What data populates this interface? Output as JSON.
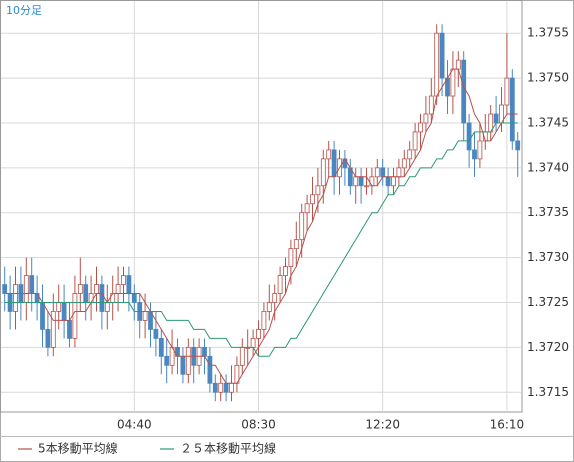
{
  "chart_data": {
    "type": "candlestick",
    "title": "10分足",
    "categories": [
      null,
      null,
      null,
      null,
      null,
      null,
      null,
      null,
      null,
      null,
      null,
      null,
      null,
      null,
      null,
      null,
      null,
      null,
      null,
      null,
      null,
      null,
      null,
      null,
      "04:40",
      null,
      null,
      null,
      null,
      null,
      null,
      null,
      null,
      null,
      null,
      null,
      null,
      null,
      null,
      null,
      null,
      null,
      null,
      null,
      null,
      null,
      null,
      "08:30",
      null,
      null,
      null,
      null,
      null,
      null,
      null,
      null,
      null,
      null,
      null,
      null,
      null,
      null,
      null,
      null,
      null,
      null,
      null,
      null,
      null,
      null,
      "12:20",
      null,
      null,
      null,
      null,
      null,
      null,
      null,
      null,
      null,
      null,
      null,
      null,
      null,
      null,
      null,
      null,
      null,
      null,
      null,
      null,
      null,
      null,
      "16:10",
      null,
      null
    ],
    "open": [
      1.3727,
      1.3726,
      1.3724,
      1.3727,
      1.3725,
      1.3728,
      1.3726,
      1.3725,
      1.3722,
      1.372,
      1.3724,
      1.3725,
      1.3723,
      1.3721,
      1.3726,
      1.3727,
      1.3725,
      1.3726,
      1.3727,
      1.3724,
      1.3725,
      1.3726,
      1.3727,
      1.3728,
      1.3726,
      1.3725,
      1.3723,
      1.3724,
      1.3722,
      1.3721,
      1.3719,
      1.3718,
      1.372,
      1.3719,
      1.3717,
      1.372,
      1.3718,
      1.372,
      1.3719,
      1.3716,
      1.3715,
      1.3716,
      1.3715,
      1.3716,
      1.3718,
      1.372,
      1.372,
      1.3721,
      1.3722,
      1.3724,
      1.3725,
      1.3726,
      1.3728,
      1.3729,
      1.3731,
      1.3732,
      1.3735,
      1.3736,
      1.3737,
      1.3738,
      1.3741,
      1.3742,
      1.3739,
      1.3741,
      1.374,
      1.3738,
      1.3739,
      1.3738,
      1.3738,
      1.3739,
      1.374,
      1.3739,
      1.3738,
      1.3739,
      1.374,
      1.3741,
      1.3742,
      1.3744,
      1.3745,
      1.3746,
      1.3748,
      1.3755,
      1.375,
      1.3748,
      1.3751,
      1.3752,
      1.3745,
      1.3742,
      1.3741,
      1.3743,
      1.3744,
      1.3746,
      1.3745,
      1.3747,
      1.375,
      1.3743
    ],
    "high": [
      1.3729,
      1.3728,
      1.3729,
      1.3729,
      1.373,
      1.373,
      1.3728,
      1.3727,
      1.3724,
      1.3726,
      1.3727,
      1.3727,
      1.3725,
      1.3728,
      1.373,
      1.3728,
      1.3728,
      1.3729,
      1.3728,
      1.3727,
      1.3728,
      1.3729,
      1.3729,
      1.3729,
      1.3727,
      1.3726,
      1.3726,
      1.3725,
      1.3724,
      1.3722,
      1.3721,
      1.3722,
      1.3721,
      1.372,
      1.3721,
      1.3721,
      1.3721,
      1.3721,
      1.372,
      1.3717,
      1.3717,
      1.3717,
      1.3718,
      1.3719,
      1.3721,
      1.3722,
      1.3722,
      1.3723,
      1.3725,
      1.3727,
      1.3727,
      1.3729,
      1.373,
      1.3732,
      1.3734,
      1.3736,
      1.3737,
      1.3739,
      1.374,
      1.3742,
      1.3743,
      1.3743,
      1.3742,
      1.3742,
      1.3741,
      1.374,
      1.374,
      1.374,
      1.374,
      1.3741,
      1.3741,
      1.374,
      1.374,
      1.3741,
      1.3742,
      1.3743,
      1.3745,
      1.3746,
      1.3748,
      1.375,
      1.3756,
      1.3756,
      1.3752,
      1.3753,
      1.3753,
      1.3753,
      1.3746,
      1.3744,
      1.3745,
      1.3746,
      1.3747,
      1.3748,
      1.3749,
      1.3755,
      1.3751,
      1.3744
    ],
    "low": [
      1.3724,
      1.3722,
      1.3722,
      1.3723,
      1.3723,
      1.3724,
      1.3723,
      1.372,
      1.3719,
      1.3719,
      1.3722,
      1.3721,
      1.372,
      1.372,
      1.3724,
      1.3723,
      1.3723,
      1.3724,
      1.3722,
      1.3722,
      1.3723,
      1.3724,
      1.3725,
      1.3724,
      1.3723,
      1.3721,
      1.3721,
      1.372,
      1.3719,
      1.3717,
      1.3716,
      1.3717,
      1.3717,
      1.3716,
      1.3716,
      1.3716,
      1.3717,
      1.3717,
      1.3715,
      1.3714,
      1.3714,
      1.3714,
      1.3714,
      1.3715,
      1.3717,
      1.3718,
      1.3719,
      1.3719,
      1.3721,
      1.3723,
      1.3723,
      1.3725,
      1.3726,
      1.3727,
      1.3729,
      1.373,
      1.3733,
      1.3734,
      1.3735,
      1.3736,
      1.3739,
      1.3737,
      1.3737,
      1.3738,
      1.3737,
      1.3736,
      1.3736,
      1.3737,
      1.3737,
      1.3738,
      1.3738,
      1.3737,
      1.3737,
      1.3738,
      1.3739,
      1.374,
      1.3741,
      1.3742,
      1.3744,
      1.3745,
      1.3747,
      1.3748,
      1.3746,
      1.3746,
      1.3749,
      1.3743,
      1.374,
      1.3739,
      1.374,
      1.3742,
      1.3743,
      1.3744,
      1.3744,
      1.3746,
      1.3742,
      1.3739
    ],
    "close": [
      1.3726,
      1.3724,
      1.3727,
      1.3725,
      1.3728,
      1.3726,
      1.3725,
      1.3722,
      1.372,
      1.3724,
      1.3725,
      1.3723,
      1.3721,
      1.3726,
      1.3727,
      1.3725,
      1.3726,
      1.3727,
      1.3724,
      1.3725,
      1.3726,
      1.3727,
      1.3728,
      1.3726,
      1.3725,
      1.3723,
      1.3724,
      1.3722,
      1.3721,
      1.3719,
      1.3718,
      1.372,
      1.3719,
      1.3717,
      1.372,
      1.3718,
      1.372,
      1.3719,
      1.3716,
      1.3715,
      1.3716,
      1.3715,
      1.3716,
      1.3718,
      1.372,
      1.372,
      1.3721,
      1.3722,
      1.3724,
      1.3725,
      1.3726,
      1.3728,
      1.3729,
      1.3731,
      1.3732,
      1.3735,
      1.3736,
      1.3737,
      1.3738,
      1.3741,
      1.3742,
      1.3739,
      1.3741,
      1.374,
      1.3738,
      1.3739,
      1.3738,
      1.3738,
      1.3739,
      1.374,
      1.3739,
      1.3738,
      1.3739,
      1.374,
      1.3741,
      1.3742,
      1.3744,
      1.3745,
      1.3746,
      1.3748,
      1.3755,
      1.375,
      1.3748,
      1.3751,
      1.3752,
      1.3745,
      1.3742,
      1.3741,
      1.3743,
      1.3744,
      1.3746,
      1.3745,
      1.3747,
      1.375,
      1.3743,
      1.3742
    ],
    "up_color": "#b5524a",
    "down_color": "#4a86c0",
    "series": [
      {
        "name": "5本移動平均線",
        "color": "#b5524a",
        "values": [
          1.3726,
          1.3726,
          1.3726,
          1.3726,
          1.3726,
          1.3726,
          1.3726,
          1.3725,
          1.3724,
          1.3723,
          1.3723,
          1.3723,
          1.3723,
          1.3724,
          1.3724,
          1.3724,
          1.3725,
          1.3726,
          1.3726,
          1.3725,
          1.3726,
          1.3726,
          1.3726,
          1.3726,
          1.3726,
          1.3726,
          1.3725,
          1.3724,
          1.3723,
          1.3722,
          1.3721,
          1.372,
          1.3719,
          1.3719,
          1.3719,
          1.3719,
          1.3719,
          1.3719,
          1.3718,
          1.3718,
          1.3717,
          1.3716,
          1.3716,
          1.3716,
          1.3717,
          1.3718,
          1.3719,
          1.372,
          1.3721,
          1.3722,
          1.3724,
          1.3725,
          1.3726,
          1.3728,
          1.3729,
          1.3731,
          1.3733,
          1.3734,
          1.3736,
          1.3737,
          1.3739,
          1.3739,
          1.374,
          1.3741,
          1.374,
          1.3739,
          1.3739,
          1.3739,
          1.3738,
          1.3738,
          1.3739,
          1.3739,
          1.3739,
          1.3739,
          1.3739,
          1.374,
          1.3741,
          1.3742,
          1.3744,
          1.3745,
          1.3748,
          1.3749,
          1.375,
          1.3751,
          1.3751,
          1.3749,
          1.3748,
          1.3746,
          1.3745,
          1.3743,
          1.3743,
          1.3744,
          1.3745,
          1.3746,
          1.3746,
          1.3746
        ]
      },
      {
        "name": "２５本移動平均線",
        "color": "#2a9a72",
        "values": [
          1.3725,
          1.3725,
          1.3725,
          1.3725,
          1.3725,
          1.3725,
          1.3725,
          1.3725,
          1.3725,
          1.3725,
          1.3725,
          1.3725,
          1.3725,
          1.3725,
          1.3725,
          1.3725,
          1.3725,
          1.3725,
          1.3725,
          1.3725,
          1.3725,
          1.3725,
          1.3725,
          1.3725,
          1.3724,
          1.3724,
          1.3724,
          1.3724,
          1.3724,
          1.3724,
          1.3723,
          1.3723,
          1.3723,
          1.3723,
          1.3723,
          1.3722,
          1.3722,
          1.3722,
          1.3721,
          1.3721,
          1.3721,
          1.3721,
          1.372,
          1.372,
          1.372,
          1.372,
          1.372,
          1.3719,
          1.3719,
          1.3719,
          1.372,
          1.372,
          1.372,
          1.3721,
          1.3721,
          1.3722,
          1.3723,
          1.3724,
          1.3725,
          1.3726,
          1.3727,
          1.3728,
          1.3729,
          1.373,
          1.3731,
          1.3732,
          1.3733,
          1.3734,
          1.3735,
          1.3735,
          1.3736,
          1.3737,
          1.3737,
          1.3738,
          1.3738,
          1.3739,
          1.3739,
          1.374,
          1.374,
          1.374,
          1.3741,
          1.3741,
          1.3742,
          1.3742,
          1.3743,
          1.3743,
          1.3743,
          1.3744,
          1.3744,
          1.3744,
          1.3744,
          1.3745,
          1.3745,
          1.3745,
          1.3745,
          1.3745
        ]
      }
    ],
    "ylim": [
      1.37128,
      1.37587
    ],
    "yticks": [
      1.3715,
      {
        "value": 1.372,
        "label": "1.3720"
      },
      1.3725,
      {
        "value": 1.373,
        "label": "1.3730"
      },
      1.3735,
      {
        "value": 1.374,
        "label": "1.3740"
      },
      1.3745,
      {
        "value": 1.375,
        "label": "1.3750"
      },
      1.3755
    ],
    "grid": true
  }
}
